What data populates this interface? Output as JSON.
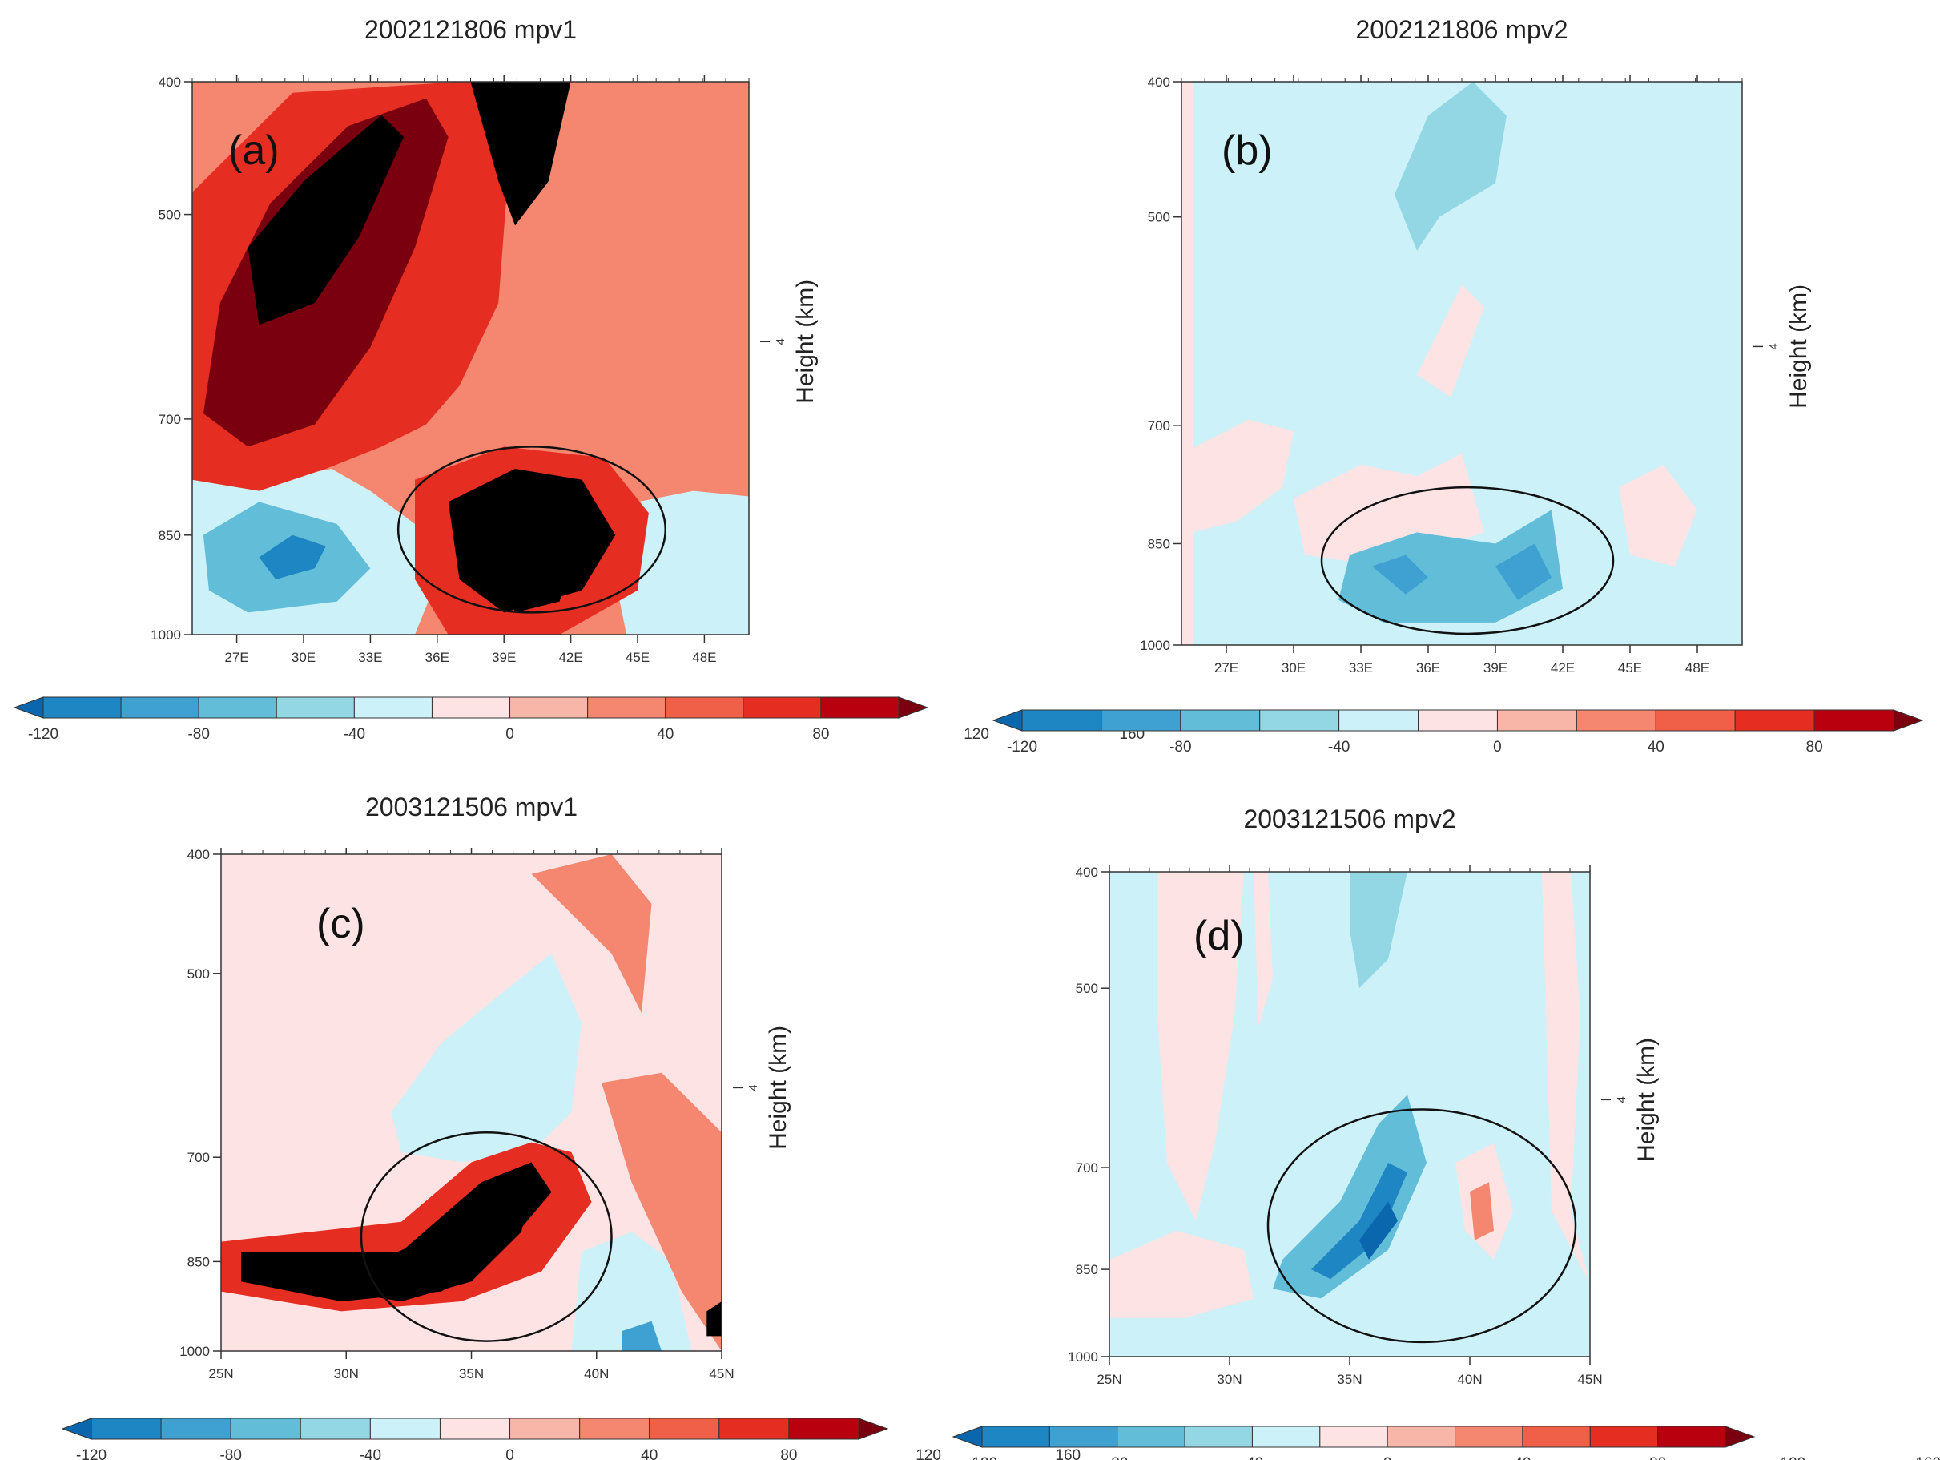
{
  "figure": {
    "panels": [
      "a",
      "b",
      "c",
      "d"
    ]
  },
  "colorbar": {
    "ticks": [
      "-120",
      "-80",
      "-40",
      "0",
      "40",
      "80",
      "120",
      "160"
    ],
    "colors": [
      "#0a66ad",
      "#1f86c4",
      "#3ea1d2",
      "#62bdd9",
      "#94d7e4",
      "#cdf1f8",
      "#fde3e3",
      "#f8b6a8",
      "#f58670",
      "#f05f48",
      "#e52d22",
      "#b8000f",
      "#7a0010"
    ]
  },
  "chart_data": [
    {
      "type": "heatmap",
      "panel_label": "(a)",
      "title": "2002121806 mpv1",
      "xlabel": "",
      "ylabel": "",
      "right_ylabel": "Height (km)",
      "right_tick": "4",
      "x_ticks": [
        "27E",
        "30E",
        "33E",
        "36E",
        "39E",
        "42E",
        "45E",
        "48E"
      ],
      "y_ticks": [
        "400",
        "500",
        "700",
        "850",
        "1000"
      ],
      "x_range": [
        25,
        50
      ],
      "y_range_hPa": [
        400,
        1000
      ],
      "colorbar_range": [
        -120,
        160
      ],
      "highlight": "ellipse around 36E-45E, 780-980 hPa (max >160)",
      "regions": [
        {
          "level": 3,
          "desc": "background positive"
        },
        {
          "level": 5,
          "desc": "broad diagonal band rising westward"
        },
        {
          "level": 7,
          "desc": "band core"
        },
        {
          "level": 9,
          "desc": "band core upper"
        },
        {
          "level": 11,
          "desc": "narrow column near 41E, 400-500 hPa"
        },
        {
          "level": 12,
          "desc": "low-level maximum near 40E-41E, 900 hPa"
        },
        {
          "level": -2,
          "desc": "lower-left negative area"
        },
        {
          "level": -5,
          "desc": "minimum near 30E, 880 hPa"
        }
      ]
    },
    {
      "type": "heatmap",
      "panel_label": "(b)",
      "title": "2002121806 mpv2",
      "xlabel": "",
      "ylabel": "",
      "right_ylabel": "Height (km)",
      "right_tick": "4",
      "x_ticks": [
        "27E",
        "30E",
        "33E",
        "36E",
        "39E",
        "42E",
        "45E",
        "48E"
      ],
      "y_ticks": [
        "400",
        "500",
        "700",
        "850",
        "1000"
      ],
      "x_range": [
        25,
        50
      ],
      "y_range_hPa": [
        400,
        1000
      ],
      "colorbar_range": [
        -120,
        160
      ],
      "highlight": "ellipse around 33E-42E, 820-940 hPa (min about -60)",
      "regions": [
        {
          "level": -1,
          "desc": "background weakly negative"
        },
        {
          "level": -2,
          "desc": "tongue near 37E-40E aloft"
        },
        {
          "level": 1,
          "desc": "scattered weak positive patches"
        },
        {
          "level": -4,
          "desc": "low-level negative cores near 35E and 40E"
        }
      ]
    },
    {
      "type": "heatmap",
      "panel_label": "(c)",
      "title": "2003121506 mpv1",
      "xlabel": "",
      "ylabel": "",
      "right_ylabel": "Height (km)",
      "right_tick": "4",
      "x_ticks": [
        "25N",
        "30N",
        "35N",
        "40N",
        "45N"
      ],
      "y_ticks": [
        "400",
        "500",
        "700",
        "850",
        "1000"
      ],
      "x_range": [
        25,
        45
      ],
      "y_range_hPa": [
        400,
        1000
      ],
      "colorbar_range": [
        -120,
        160
      ],
      "highlight": "ellipse around 31N-41N, 700-990 hPa (max >160)",
      "regions": [
        {
          "level": 1,
          "desc": "background weakly positive"
        },
        {
          "level": -1,
          "desc": "weak negative tongue 33N-41N"
        },
        {
          "level": 3,
          "desc": "moderate positive bands north of 39N"
        },
        {
          "level": 7,
          "desc": "frontal band 25N-39N sloping upward"
        },
        {
          "level": 12,
          "desc": "core near 33N-37N, 850-900 hPa"
        }
      ]
    },
    {
      "type": "heatmap",
      "panel_label": "(d)",
      "title": "2003121506 mpv2",
      "xlabel": "",
      "ylabel": "",
      "right_ylabel": "Height (km)",
      "right_tick": "4",
      "x_ticks": [
        "25N",
        "30N",
        "35N",
        "40N",
        "45N"
      ],
      "y_ticks": [
        "400",
        "500",
        "700",
        "850",
        "1000"
      ],
      "x_range": [
        25,
        45
      ],
      "y_range_hPa": [
        400,
        1000
      ],
      "colorbar_range": [
        -120,
        160
      ],
      "highlight": "ellipse around 31N-44N, 660-990 hPa (min about -120)",
      "regions": [
        {
          "level": -1,
          "desc": "background weakly negative"
        },
        {
          "level": 1,
          "desc": "weak positive columns near 28N and 40N"
        },
        {
          "level": -3,
          "desc": "sloping negative band"
        },
        {
          "level": -6,
          "desc": "core near 36N-37N, 800-850 hPa"
        },
        {
          "level": 3,
          "desc": "small positive core near 41N, 800 hPa"
        }
      ]
    }
  ]
}
